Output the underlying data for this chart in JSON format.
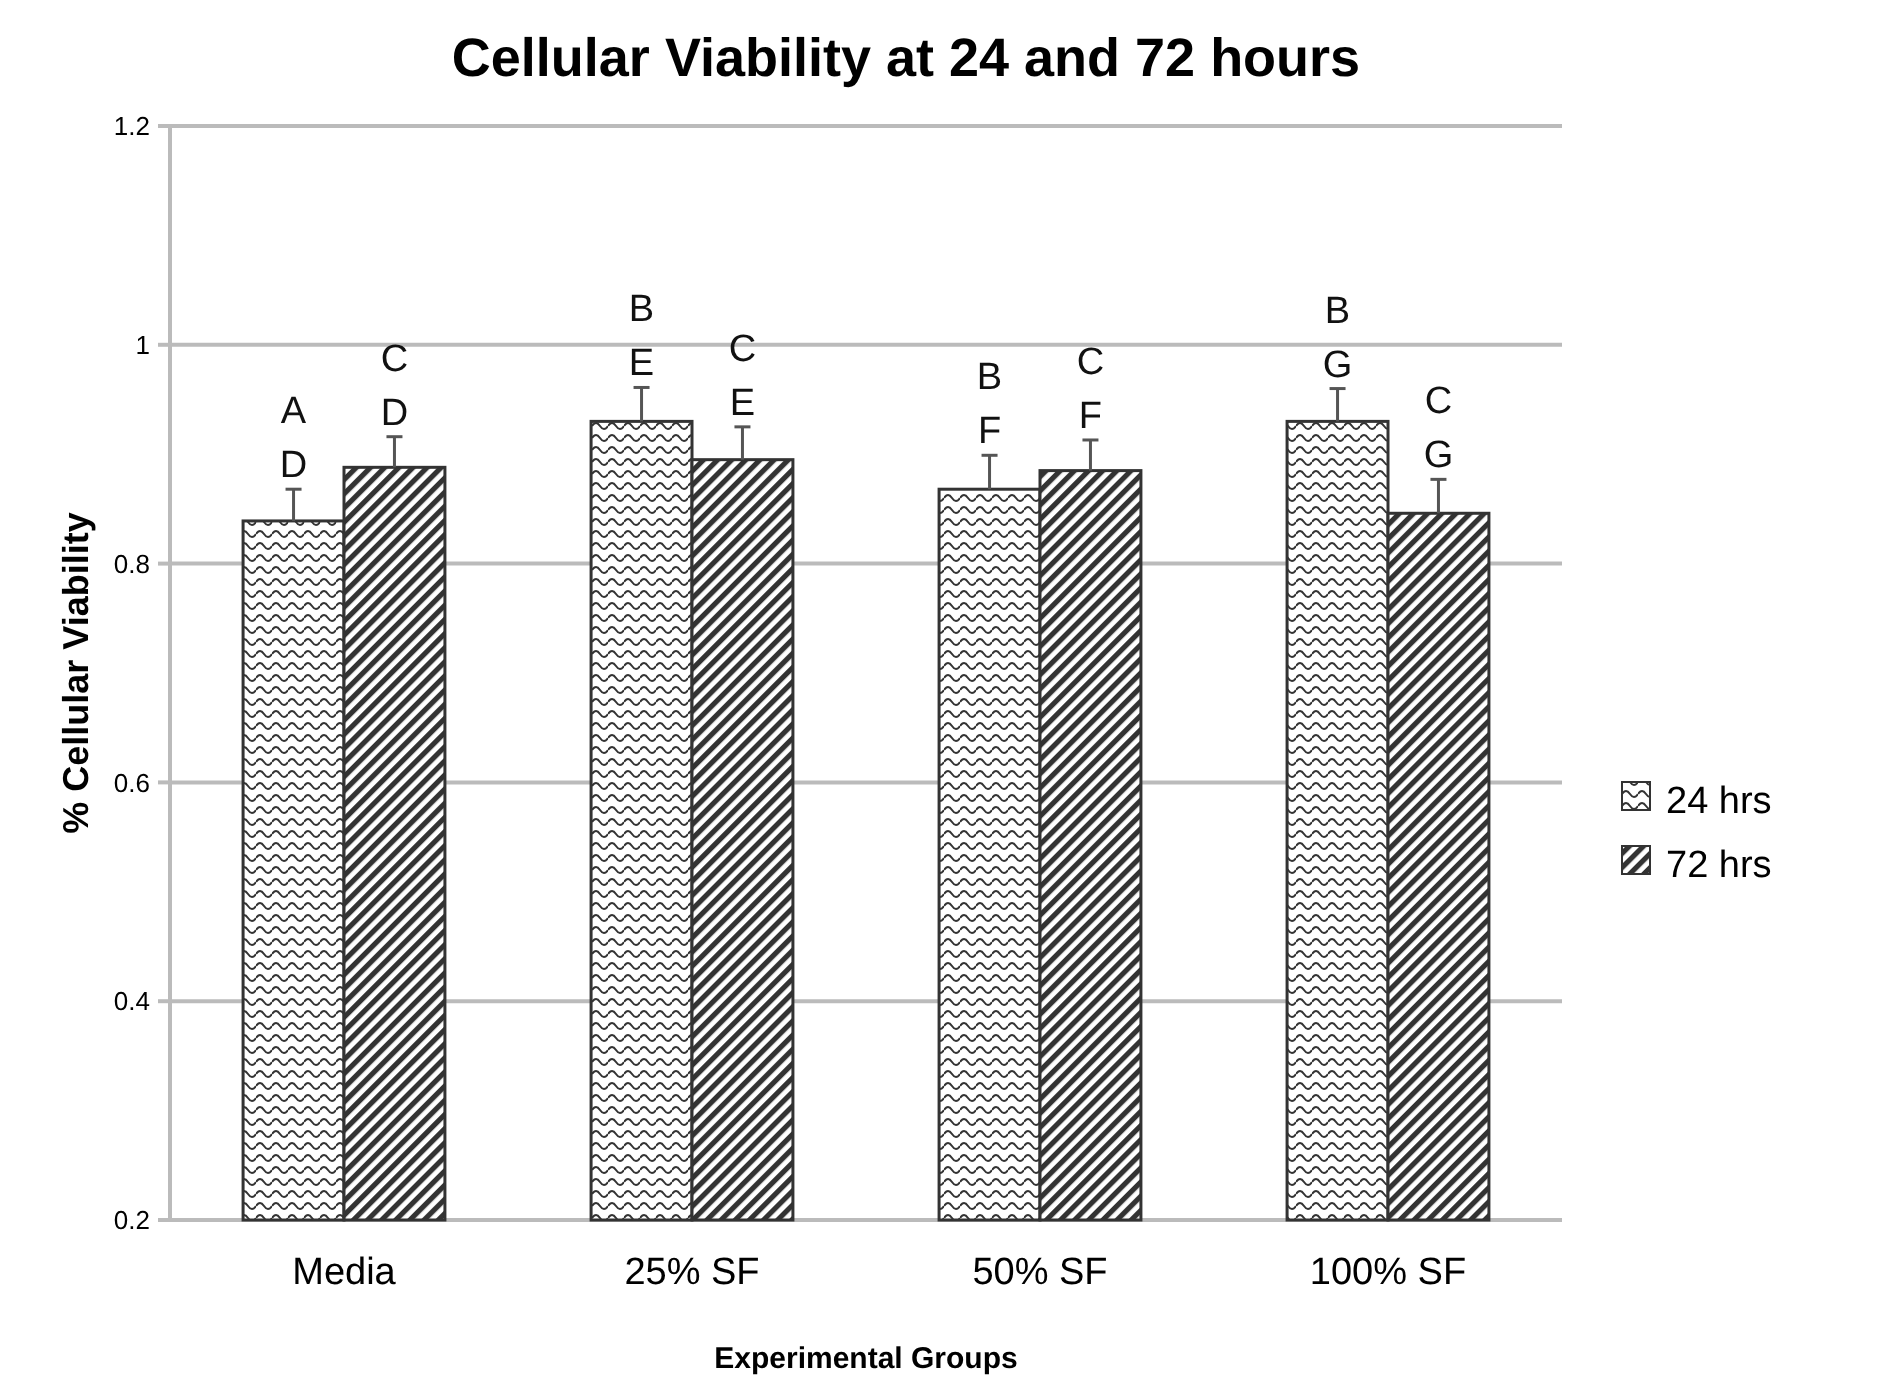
{
  "chart_data": {
    "type": "bar",
    "title": "Cellular Viability at 24 and 72 hours",
    "xlabel": "Experimental Groups",
    "ylabel": "% Cellular Viability",
    "categories": [
      "Media",
      "25% SF",
      "50% SF",
      "100% SF"
    ],
    "series": [
      {
        "name": "24 hrs",
        "color": "#333333",
        "values": [
          0.839,
          0.93,
          0.868,
          0.93
        ],
        "errors": [
          0.029,
          0.031,
          0.031,
          0.03
        ],
        "value_labels": [
          "A\nD",
          "B\nE",
          "B\nF",
          "B\nG"
        ]
      },
      {
        "name": "72 hrs",
        "color": "#333333",
        "values": [
          0.888,
          0.895,
          0.885,
          0.846
        ],
        "errors": [
          0.028,
          0.03,
          0.028,
          0.031
        ],
        "value_labels": [
          "C\nD",
          "C\nE",
          "C\nF",
          "C\nG"
        ]
      }
    ],
    "ylim": [
      0.2,
      1.2
    ],
    "yticks": [
      0.2,
      0.4,
      0.6,
      0.8,
      1,
      1.2
    ],
    "grid": "y",
    "legend": "right"
  }
}
